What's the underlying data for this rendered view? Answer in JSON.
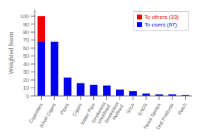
{
  "chart_data": {
    "type": "bar",
    "stacked": true,
    "categories": [
      "Cigarettes",
      "Small Cigars",
      "Pipes",
      "Cigars",
      "Water Pipe",
      "Smokeless\nUnrefined",
      "Smokeless\nRefined",
      "Snus",
      "ENDS",
      "Nasal Sprays",
      "Oral Products",
      "Patch"
    ],
    "series": [
      {
        "name": "To users (67)",
        "color": "#0000EE",
        "values": [
          68,
          68,
          23,
          16,
          14,
          13,
          8,
          6,
          3,
          2,
          2,
          1
        ]
      },
      {
        "name": "To others (33)",
        "color": "#EE0000",
        "values": [
          32,
          0,
          0,
          0,
          0,
          0,
          0,
          0,
          0,
          0,
          0,
          0
        ]
      }
    ],
    "ylabel": "Weighted harm",
    "ylim": [
      0,
      108
    ],
    "yticks": [
      0,
      10,
      20,
      30,
      40,
      50,
      60,
      70,
      80,
      90,
      100
    ],
    "legend": "upper right",
    "grid": false
  }
}
